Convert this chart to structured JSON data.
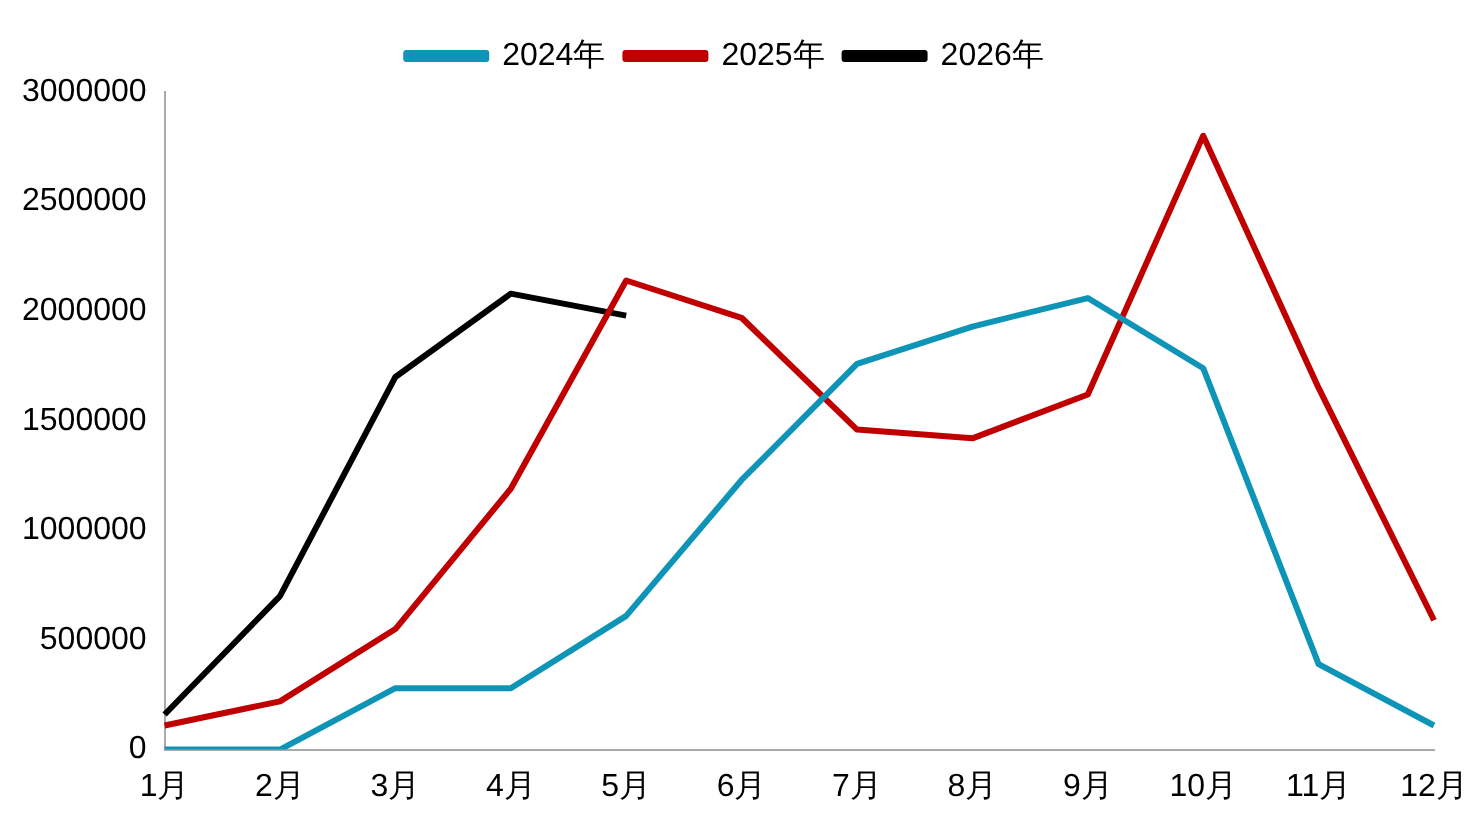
{
  "chart_data": {
    "type": "line",
    "categories": [
      "1月",
      "2月",
      "3月",
      "4月",
      "5月",
      "6月",
      "7月",
      "8月",
      "9月",
      "10月",
      "11月",
      "12月"
    ],
    "series": [
      {
        "name": "2024年",
        "color": "#0e94b7",
        "values": [
          0,
          0,
          280000,
          280000,
          610000,
          1230000,
          1760000,
          1930000,
          2060000,
          1740000,
          390000,
          110000
        ]
      },
      {
        "name": "2025年",
        "color": "#c00000",
        "values": [
          110000,
          220000,
          550000,
          1190000,
          2140000,
          1970000,
          1460000,
          1420000,
          1620000,
          2800000,
          1650000,
          590000
        ]
      },
      {
        "name": "2026年",
        "color": "#000000",
        "values": [
          160000,
          700000,
          1700000,
          2080000,
          1980000,
          null,
          null,
          null,
          null,
          null,
          null,
          null
        ]
      }
    ],
    "ylim": [
      0,
      3000000
    ],
    "yticks": [
      0,
      500000,
      1000000,
      1500000,
      2000000,
      2500000,
      3000000
    ],
    "grid": false,
    "legend": "top",
    "marker": "none",
    "line_style": "solid"
  }
}
